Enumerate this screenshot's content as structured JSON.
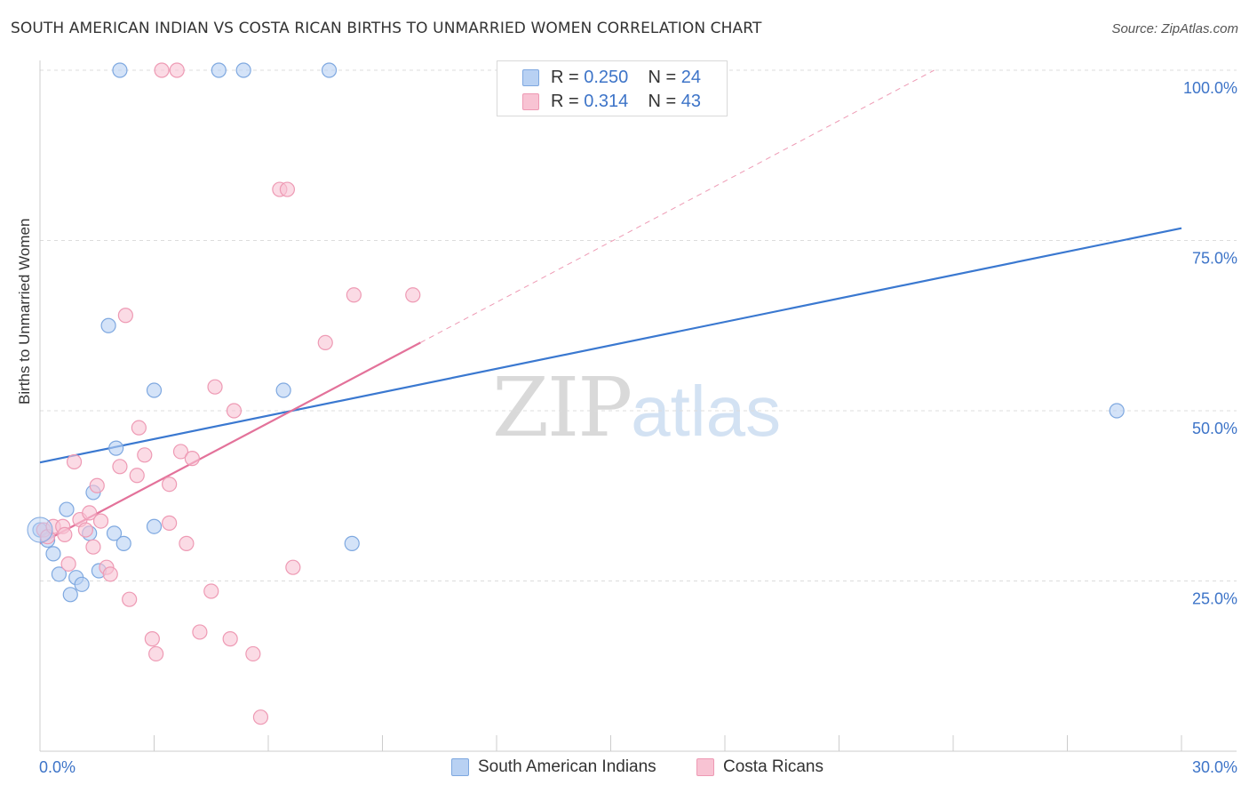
{
  "title": "SOUTH AMERICAN INDIAN VS COSTA RICAN BIRTHS TO UNMARRIED WOMEN CORRELATION CHART",
  "source": "Source: ZipAtlas.com",
  "watermark": {
    "zip": "ZIP",
    "atlas": "atlas"
  },
  "colors": {
    "blue_fill": "#b8d1f3",
    "blue_stroke": "#7ea8e0",
    "blue_line": "#3a78d0",
    "pink_fill": "#f8c3d3",
    "pink_stroke": "#ee9ab4",
    "pink_line": "#e3729a",
    "axis_text": "#3d74c8",
    "grid": "#dcdcdc"
  },
  "legend": {
    "rows": [
      {
        "r_label": "R = ",
        "r_value": "0.250",
        "n_label": "N = ",
        "n_value": "24"
      },
      {
        "r_label": "R = ",
        "r_value": "0.314",
        "n_label": "N = ",
        "n_value": "43"
      }
    ]
  },
  "bottom_legend": [
    "South American Indians",
    "Costa Ricans"
  ],
  "chart_data": {
    "type": "scatter",
    "title": "SOUTH AMERICAN INDIAN VS COSTA RICAN BIRTHS TO UNMARRIED WOMEN CORRELATION CHART",
    "xlabel": "",
    "ylabel": "Births to Unmarried Women",
    "xlim": [
      0,
      30
    ],
    "ylim": [
      0,
      100
    ],
    "x_tick_labels": [
      "0.0%",
      "30.0%"
    ],
    "y_ticks": [
      25,
      50,
      75,
      100
    ],
    "y_tick_labels": [
      "25.0%",
      "50.0%",
      "75.0%",
      "100.0%"
    ],
    "series": [
      {
        "name": "South American Indians",
        "r": 0.25,
        "n": 24,
        "points": [
          [
            0.0,
            32.5
          ],
          [
            0.2,
            31.0
          ],
          [
            0.35,
            29.0
          ],
          [
            0.5,
            26.0
          ],
          [
            0.7,
            35.5
          ],
          [
            0.8,
            23.0
          ],
          [
            0.95,
            25.5
          ],
          [
            1.1,
            24.5
          ],
          [
            1.3,
            32.0
          ],
          [
            1.4,
            38.0
          ],
          [
            1.55,
            26.5
          ],
          [
            1.8,
            62.5
          ],
          [
            1.95,
            32.0
          ],
          [
            2.0,
            44.5
          ],
          [
            2.2,
            30.5
          ],
          [
            2.1,
            100.0
          ],
          [
            3.0,
            53.0
          ],
          [
            3.0,
            33.0
          ],
          [
            4.7,
            100.0
          ],
          [
            5.35,
            100.0
          ],
          [
            6.4,
            53.0
          ],
          [
            7.6,
            100.0
          ],
          [
            8.2,
            30.5
          ],
          [
            28.3,
            50.0
          ]
        ],
        "trend": {
          "x1": 0,
          "y1": 42.4,
          "x2": 30,
          "y2": 76.8
        }
      },
      {
        "name": "Costa Ricans",
        "r": 0.314,
        "n": 43,
        "points": [
          [
            0.1,
            32.5
          ],
          [
            0.2,
            31.5
          ],
          [
            0.35,
            33.0
          ],
          [
            0.6,
            33.0
          ],
          [
            0.65,
            31.8
          ],
          [
            0.75,
            27.5
          ],
          [
            0.9,
            42.5
          ],
          [
            1.05,
            34.0
          ],
          [
            1.2,
            32.5
          ],
          [
            1.3,
            35.0
          ],
          [
            1.4,
            30.0
          ],
          [
            1.5,
            39.0
          ],
          [
            1.6,
            33.8
          ],
          [
            1.75,
            27.0
          ],
          [
            1.85,
            26.0
          ],
          [
            2.1,
            41.8
          ],
          [
            2.25,
            64.0
          ],
          [
            2.35,
            22.3
          ],
          [
            2.55,
            40.5
          ],
          [
            2.6,
            47.5
          ],
          [
            2.75,
            43.5
          ],
          [
            2.95,
            16.5
          ],
          [
            3.05,
            14.3
          ],
          [
            3.2,
            100.0
          ],
          [
            3.4,
            33.5
          ],
          [
            3.4,
            39.2
          ],
          [
            3.6,
            100.0
          ],
          [
            3.7,
            44.0
          ],
          [
            3.85,
            30.5
          ],
          [
            4.0,
            43.0
          ],
          [
            4.2,
            17.5
          ],
          [
            4.5,
            23.5
          ],
          [
            4.6,
            53.5
          ],
          [
            5.0,
            16.5
          ],
          [
            5.1,
            50.0
          ],
          [
            5.6,
            14.3
          ],
          [
            5.8,
            5.0
          ],
          [
            6.3,
            82.5
          ],
          [
            6.5,
            82.5
          ],
          [
            6.65,
            27.0
          ],
          [
            7.5,
            60.0
          ],
          [
            8.25,
            67.0
          ],
          [
            9.8,
            67.0
          ]
        ],
        "trend": {
          "x1": 0,
          "y1": 30.5,
          "x2": 10.0,
          "y2": 60.0
        },
        "trend_extension": {
          "x1": 10.0,
          "y1": 60.0,
          "x2": 23.5,
          "y2": 100.0
        }
      }
    ]
  }
}
